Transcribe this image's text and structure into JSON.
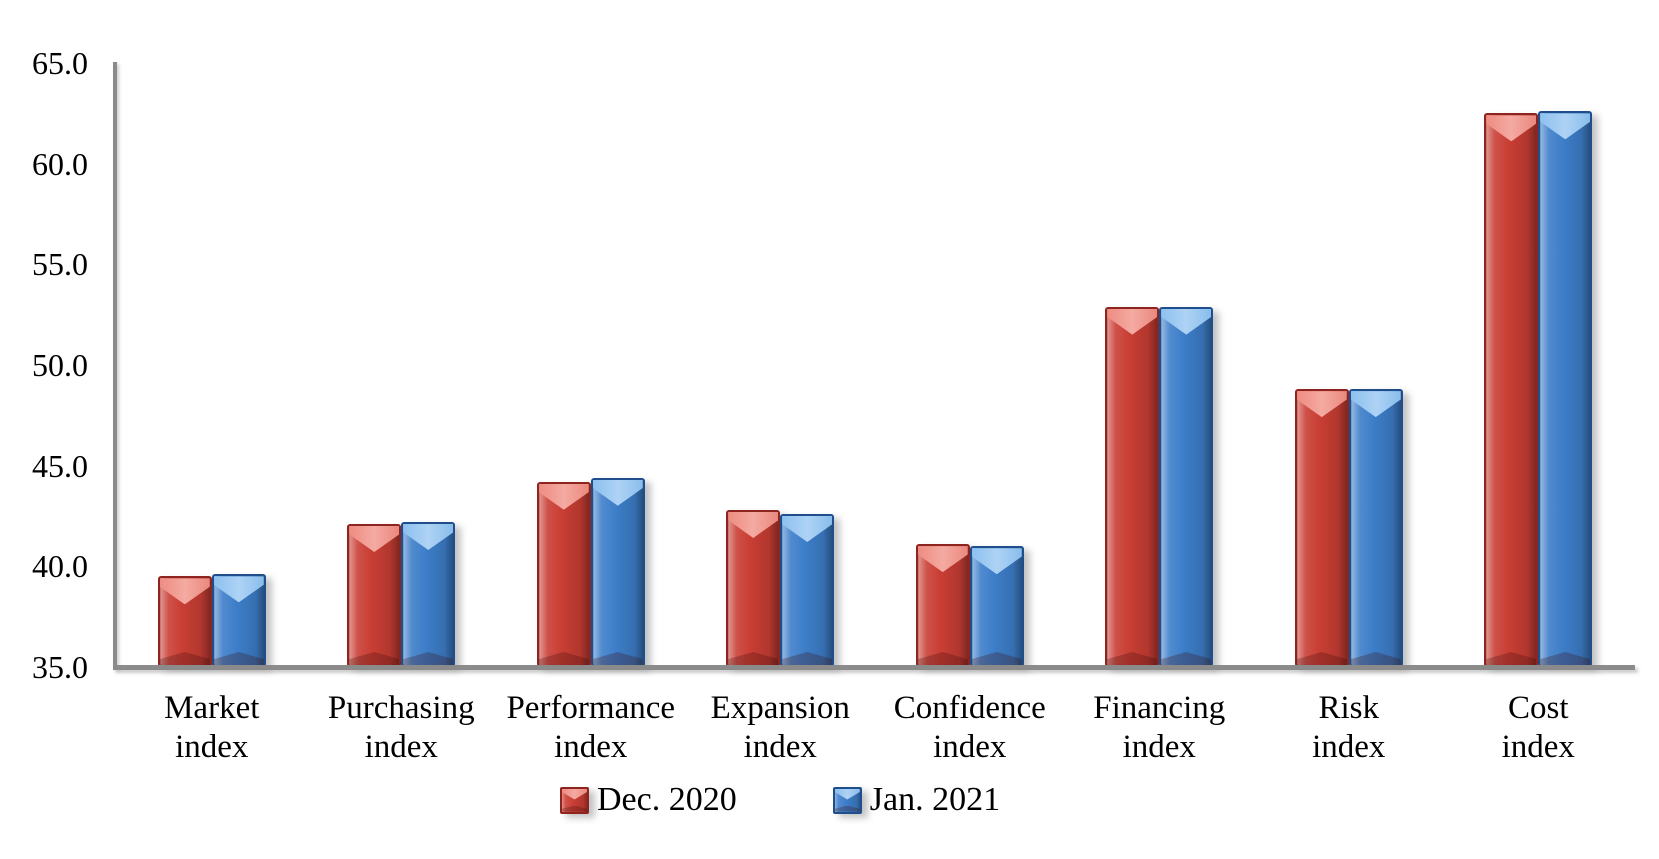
{
  "chart_data": {
    "type": "bar",
    "title": "",
    "categories": [
      "Market index",
      "Purchasing index",
      "Performance index",
      "Expansion index",
      "Confidence index",
      "Financing index",
      "Risk index",
      "Cost index"
    ],
    "series": [
      {
        "name": "Dec. 2020",
        "color": "#c93e34",
        "color_light": "#ef8d82",
        "color_lighter": "#f6b0a8",
        "color_dark": "#8e241f",
        "values": [
          39.5,
          42.1,
          44.2,
          42.8,
          41.1,
          52.9,
          48.8,
          62.5
        ]
      },
      {
        "name": "Jan. 2021",
        "color": "#3d7ec9",
        "color_light": "#8ec2f0",
        "color_lighter": "#b4d7f7",
        "color_dark": "#1e4f8c",
        "values": [
          39.6,
          42.2,
          44.4,
          42.6,
          41.0,
          52.9,
          48.8,
          62.6
        ]
      }
    ],
    "xlabel": "",
    "ylabel": "",
    "ylim": [
      35.0,
      65.0
    ],
    "ytick_step": 5.0,
    "ytick_labels": [
      "65.0",
      "60.0",
      "55.0",
      "50.0",
      "45.0",
      "40.0",
      "35.0"
    ],
    "grid": false,
    "legend_position": "bottom",
    "axis_color": "#8b8b8b",
    "background_color": "#ffffff"
  }
}
